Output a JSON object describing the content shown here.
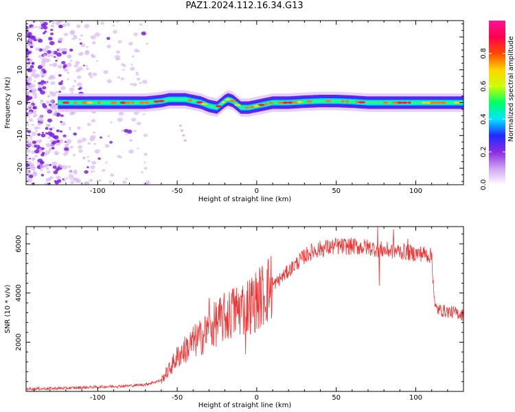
{
  "title": "PAZ1.2024.112.16.34.G13",
  "chart_data": [
    {
      "type": "heatmap",
      "xlabel": "Height of straight line (km)",
      "ylabel": "Frequency (Hz)",
      "xlim": [
        -145,
        130
      ],
      "ylim": [
        -25,
        25
      ],
      "xticks": [
        -100,
        -50,
        0,
        50,
        100
      ],
      "yticks": [
        -20,
        -10,
        0,
        10,
        20
      ],
      "colorbar": {
        "label": "Normalized spectral amplitude",
        "range": [
          0,
          1
        ],
        "ticks": [
          0.0,
          0.2,
          0.4,
          0.6,
          0.8
        ],
        "colormap": [
          "#ffffff",
          "#cda3f2",
          "#8a2be2",
          "#1f2bff",
          "#00e5ff",
          "#00ff66",
          "#ccff00",
          "#ffd400",
          "#ff4a00",
          "#ff0050",
          "#ff1493"
        ]
      },
      "ridge": {
        "x": [
          -125,
          -110,
          -100,
          -90,
          -80,
          -70,
          -60,
          -55,
          -50,
          -45,
          -40,
          -35,
          -30,
          -25,
          -20,
          -18,
          -15,
          -10,
          -5,
          0,
          5,
          10,
          20,
          30,
          40,
          50,
          60,
          70,
          80,
          90,
          100,
          110,
          120,
          130
        ],
        "freq": [
          0,
          0,
          0,
          0,
          0,
          0,
          0.5,
          1,
          1,
          1,
          0.5,
          0,
          -1,
          -1.5,
          0.5,
          1,
          0.5,
          -1.5,
          -1.5,
          -1,
          -0.5,
          0,
          0,
          0.3,
          0.5,
          0.5,
          0.3,
          0,
          0,
          0,
          0,
          0,
          0,
          0
        ]
      }
    },
    {
      "type": "line",
      "xlabel": "Height of straight line (km)",
      "ylabel": "SNR (10 * v/v)",
      "xlim": [
        -145,
        130
      ],
      "ylim": [
        0,
        6700
      ],
      "xticks": [
        -100,
        -50,
        0,
        50,
        100
      ],
      "yticks": [
        2000,
        4000,
        6000
      ],
      "color": "#ee3333",
      "envelope": {
        "x": [
          -145,
          -120,
          -100,
          -80,
          -70,
          -60,
          -55,
          -50,
          -45,
          -40,
          -35,
          -30,
          -25,
          -20,
          -15,
          -10,
          -5,
          0,
          5,
          10,
          15,
          20,
          25,
          30,
          35,
          40,
          50,
          60,
          70,
          80,
          90,
          100,
          105,
          110,
          111,
          112,
          115,
          120,
          125,
          130
        ],
        "y": [
          100,
          130,
          180,
          230,
          280,
          450,
          900,
          1400,
          1700,
          2000,
          2200,
          2500,
          2800,
          3000,
          3200,
          3400,
          3500,
          3700,
          4000,
          4300,
          4600,
          4900,
          5200,
          5500,
          5700,
          5800,
          5900,
          5900,
          5850,
          5750,
          5700,
          5600,
          5600,
          5500,
          4500,
          3400,
          3300,
          3250,
          3200,
          3100
        ]
      },
      "spikes": [
        {
          "x": -30,
          "y": 3800
        },
        {
          "x": -15,
          "y": 4100
        },
        {
          "x": -10,
          "y": 3900
        },
        {
          "x": -7,
          "y": 1500
        },
        {
          "x": 76,
          "y": 6700
        },
        {
          "x": 77,
          "y": 4300
        },
        {
          "x": 86,
          "y": 6600
        },
        {
          "x": 95,
          "y": 6200
        }
      ]
    }
  ]
}
